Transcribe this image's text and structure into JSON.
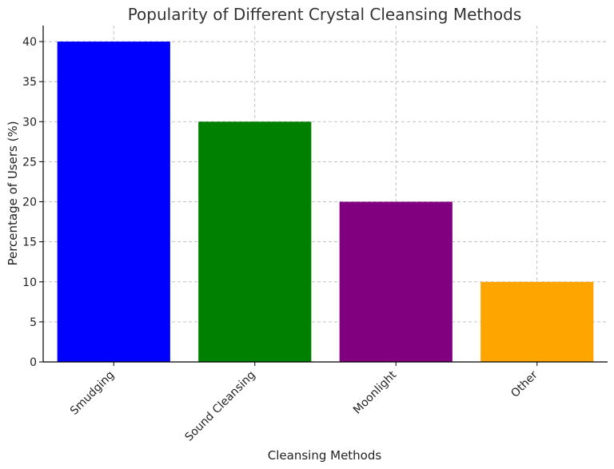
{
  "chart_data": {
    "type": "bar",
    "title": "Popularity of Different Crystal Cleansing Methods",
    "xlabel": "Cleansing Methods",
    "ylabel": "Percentage of Users (%)",
    "categories": [
      "Smudging",
      "Sound Cleansing",
      "Moonlight",
      "Other"
    ],
    "values": [
      40,
      30,
      20,
      10
    ],
    "colors": [
      "#0000ff",
      "#008000",
      "#800080",
      "#ffa500"
    ],
    "ylim": [
      0,
      42
    ],
    "yticks": [
      0,
      5,
      10,
      15,
      20,
      25,
      30,
      35,
      40
    ],
    "grid": true,
    "legend": "none"
  }
}
